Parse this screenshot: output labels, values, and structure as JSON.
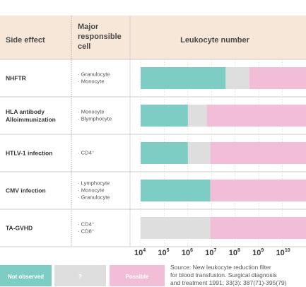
{
  "colors": {
    "header_bg": "#f7e7d8",
    "not_observed": "#7ecdc4",
    "unknown": "#dddedd",
    "possible": "#f1bdd7",
    "grid": "#cfcfcf",
    "row_line": "#bdbdbd",
    "label_sep": "#888888"
  },
  "header": {
    "side_effect": "Side effect",
    "responsible_cell": [
      "Major",
      "responsible",
      "cell"
    ],
    "leukocyte": "Leukocyte number"
  },
  "rows": [
    {
      "name": [
        "NHFTR"
      ],
      "cells": [
        "· Granulocyte",
        "· Monocyte"
      ]
    },
    {
      "name": [
        "HLA antibody",
        "Alloimmunization"
      ],
      "cells": [
        "· Monocyte",
        "· Blymphocyte"
      ]
    },
    {
      "name": [
        "HTLV-1 infection"
      ],
      "cells": [
        "· CD4⁺"
      ]
    },
    {
      "name": [
        "CMV infection"
      ],
      "cells": [
        "· Lymphocyte",
        "· Monocyte",
        "· Granulocyte"
      ]
    },
    {
      "name": [
        "TA-GVHD"
      ],
      "cells": [
        "· CD4⁺",
        "· CD8⁺"
      ]
    }
  ],
  "chart_data": {
    "type": "bar",
    "orientation": "horizontal",
    "stacked": true,
    "x_scale": "log10",
    "xlabel": "Leukocyte number",
    "xlim_exponent": [
      4,
      11
    ],
    "x_ticks": [
      {
        "base": "10",
        "exp": "4"
      },
      {
        "base": "10",
        "exp": "5"
      },
      {
        "base": "10",
        "exp": "6"
      },
      {
        "base": "10",
        "exp": "7"
      },
      {
        "base": "10",
        "exp": "8"
      },
      {
        "base": "10",
        "exp": "9"
      },
      {
        "base": "10",
        "exp": "10"
      }
    ],
    "categories": [
      "NHFTR",
      "HLA antibody Alloimmunization",
      "HTLV-1 infection",
      "CMV infection",
      "TA-GVHD"
    ],
    "segments": [
      [
        {
          "level": "not_observed",
          "from_exp": 4,
          "to_exp": 7.6
        },
        {
          "level": "unknown",
          "from_exp": 7.6,
          "to_exp": 8.6
        },
        {
          "level": "possible",
          "from_exp": 8.6,
          "to_exp": 11
        }
      ],
      [
        {
          "level": "not_observed",
          "from_exp": 4,
          "to_exp": 6
        },
        {
          "level": "unknown",
          "from_exp": 6,
          "to_exp": 6.8
        },
        {
          "level": "possible",
          "from_exp": 6.8,
          "to_exp": 11
        }
      ],
      [
        {
          "level": "not_observed",
          "from_exp": 4,
          "to_exp": 6
        },
        {
          "level": "unknown",
          "from_exp": 6,
          "to_exp": 6.95
        },
        {
          "level": "possible",
          "from_exp": 6.95,
          "to_exp": 11
        }
      ],
      [
        {
          "level": "not_observed",
          "from_exp": 4,
          "to_exp": 6.95
        },
        {
          "level": "possible",
          "from_exp": 6.95,
          "to_exp": 11
        }
      ],
      [
        {
          "level": "unknown",
          "from_exp": 4,
          "to_exp": 6.95
        },
        {
          "level": "possible",
          "from_exp": 6.95,
          "to_exp": 11
        }
      ]
    ],
    "legend": [
      {
        "key": "not_observed",
        "label": "Not observed"
      },
      {
        "key": "unknown",
        "label": "?"
      },
      {
        "key": "possible",
        "label": "Possible"
      }
    ],
    "legend_position": "bottom-left"
  },
  "source": [
    "Source: New leukocyte reduction filter",
    "for blood transfusion. Surgical diagnosis",
    "and treatment 1991; 33(3): 387(71)-395(79)"
  ]
}
